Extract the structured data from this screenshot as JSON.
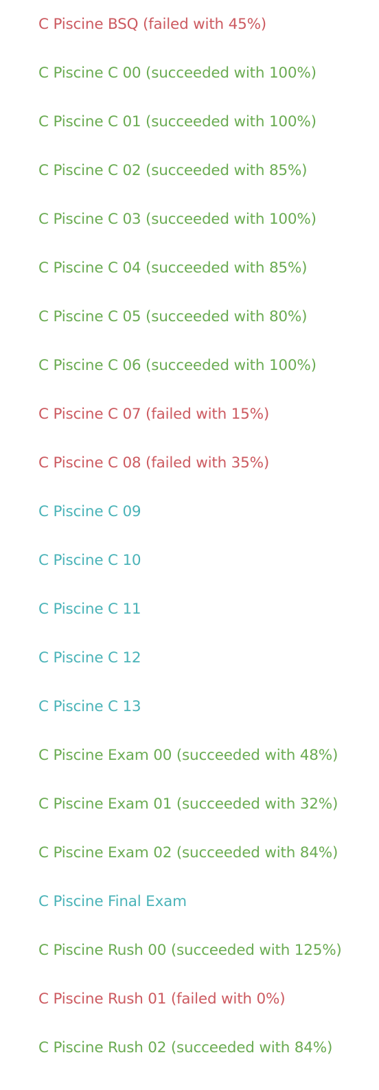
{
  "colors": {
    "succeeded": "#6aab52",
    "failed": "#cc5a60",
    "not_graded": "#4ab3b8"
  },
  "projects": [
    {
      "label": "C Piscine BSQ (failed with 45%)",
      "status": "failed"
    },
    {
      "label": "C Piscine C 00 (succeeded with 100%)",
      "status": "succeeded"
    },
    {
      "label": "C Piscine C 01 (succeeded with 100%)",
      "status": "succeeded"
    },
    {
      "label": "C Piscine C 02 (succeeded with 85%)",
      "status": "succeeded"
    },
    {
      "label": "C Piscine C 03 (succeeded with 100%)",
      "status": "succeeded"
    },
    {
      "label": "C Piscine C 04 (succeeded with 85%)",
      "status": "succeeded"
    },
    {
      "label": "C Piscine C 05 (succeeded with 80%)",
      "status": "succeeded"
    },
    {
      "label": "C Piscine C 06 (succeeded with 100%)",
      "status": "succeeded"
    },
    {
      "label": "C Piscine C 07 (failed with 15%)",
      "status": "failed"
    },
    {
      "label": "C Piscine C 08 (failed with 35%)",
      "status": "failed"
    },
    {
      "label": "C Piscine C 09",
      "status": "unset"
    },
    {
      "label": "C Piscine C 10",
      "status": "unset"
    },
    {
      "label": "C Piscine C 11",
      "status": "unset"
    },
    {
      "label": "C Piscine C 12",
      "status": "unset"
    },
    {
      "label": "C Piscine C 13",
      "status": "unset"
    },
    {
      "label": "C Piscine Exam 00 (succeeded with 48%)",
      "status": "succeeded"
    },
    {
      "label": "C Piscine Exam 01 (succeeded with 32%)",
      "status": "succeeded"
    },
    {
      "label": "C Piscine Exam 02 (succeeded with 84%)",
      "status": "succeeded"
    },
    {
      "label": "C Piscine Final Exam",
      "status": "unset"
    },
    {
      "label": "C Piscine Rush 00 (succeeded with 125%)",
      "status": "succeeded"
    },
    {
      "label": "C Piscine Rush 01 (failed with 0%)",
      "status": "failed"
    },
    {
      "label": "C Piscine Rush 02 (succeeded with 84%)",
      "status": "succeeded"
    }
  ]
}
